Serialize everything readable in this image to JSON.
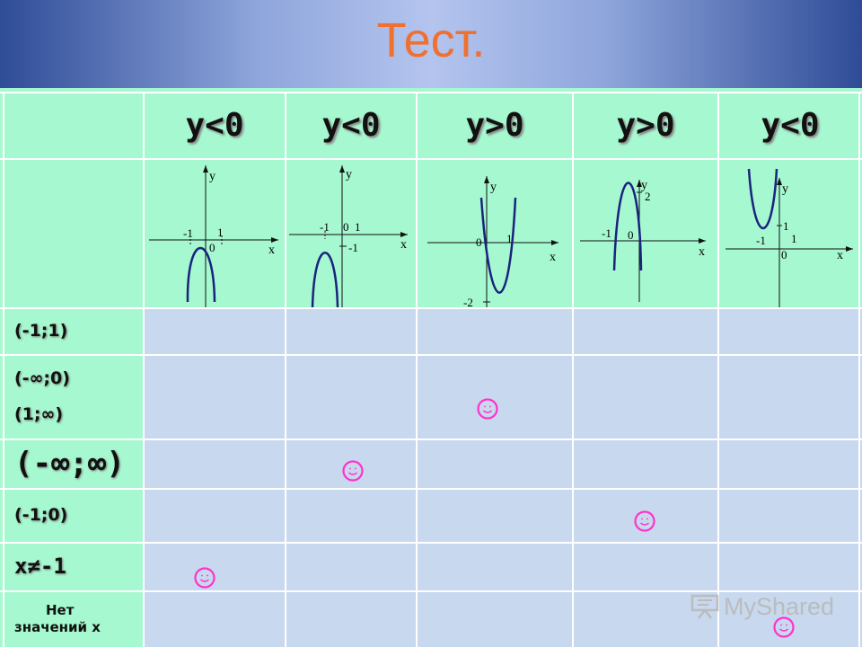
{
  "title": "Тест.",
  "headers": [
    "y<0",
    "y<0",
    "y>0",
    "y>0",
    "y<0"
  ],
  "row_labels": {
    "r1": "(-1;1)",
    "r2a": "(-∞;0)",
    "r2b": "(1;∞)",
    "r3": "(-∞;∞)",
    "r4": "(-1;0)",
    "r5": "x≠-1",
    "r6a": "Нет",
    "r6b": "значений x"
  },
  "graphs": {
    "g1": {
      "y": "y",
      "x": "x",
      "neg1": "-1",
      "one": "1",
      "zero": "0"
    },
    "g2": {
      "y": "y",
      "x": "x",
      "neg1": "-1",
      "zero": "0",
      "one": "1",
      "neg1b": "-1"
    },
    "g3": {
      "y": "y",
      "x": "x",
      "zero": "0",
      "one": "1",
      "neg2": "-2"
    },
    "g4": {
      "y": "y",
      "x": "x",
      "two": "2",
      "neg1": "-1",
      "zero": "0"
    },
    "g5": {
      "y": "y",
      "x": "x",
      "one": "1",
      "neg1": "-1",
      "one_b": "1",
      "zero": "0"
    }
  },
  "colors": {
    "title": "#f07030",
    "header_green": "#a5f8cf",
    "cell_blue": "#c8d8ee",
    "curve": "#1a237e",
    "smiley": "#ff33cc"
  },
  "watermark": {
    "icon": "presentation-board-icon",
    "text": "MyShared"
  }
}
